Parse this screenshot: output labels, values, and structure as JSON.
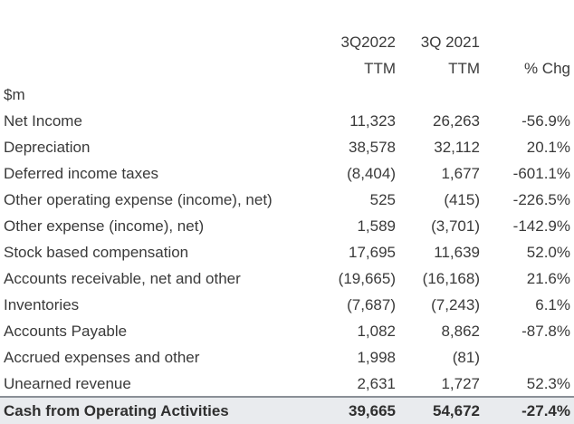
{
  "header": {
    "col_a_line1": "3Q2022",
    "col_b_line1": "3Q 2021",
    "col_a_line2": "TTM",
    "col_b_line2": "TTM",
    "col_c_line2": "% Chg",
    "units": "$m"
  },
  "rows": [
    {
      "label": "Net Income",
      "a": "11,323",
      "b": "26,263",
      "c": "-56.9%"
    },
    {
      "label": "Depreciation",
      "a": "38,578",
      "b": "32,112",
      "c": "20.1%"
    },
    {
      "label": "Deferred income taxes",
      "a": "(8,404)",
      "b": "1,677",
      "c": "-601.1%"
    },
    {
      "label": "Other operating expense (income), net)",
      "a": "525",
      "b": "(415)",
      "c": "-226.5%"
    },
    {
      "label": "Other expense (income), net)",
      "a": "1,589",
      "b": "(3,701)",
      "c": "-142.9%"
    },
    {
      "label": "Stock based compensation",
      "a": "17,695",
      "b": "11,639",
      "c": "52.0%"
    },
    {
      "label": "Accounts receivable, net and other",
      "a": "(19,665)",
      "b": "(16,168)",
      "c": "21.6%"
    },
    {
      "label": "Inventories",
      "a": "(7,687)",
      "b": "(7,243)",
      "c": "6.1%"
    },
    {
      "label": "Accounts Payable",
      "a": "1,082",
      "b": "8,862",
      "c": "-87.8%"
    },
    {
      "label": "Accrued expenses and other",
      "a": "1,998",
      "b": "(81)",
      "c": ""
    },
    {
      "label": "Unearned revenue",
      "a": "2,631",
      "b": "1,727",
      "c": "52.3%"
    }
  ],
  "total": {
    "label": "Cash from Operating Activities",
    "a": "39,665",
    "b": "54,672",
    "c": "-27.4%"
  }
}
